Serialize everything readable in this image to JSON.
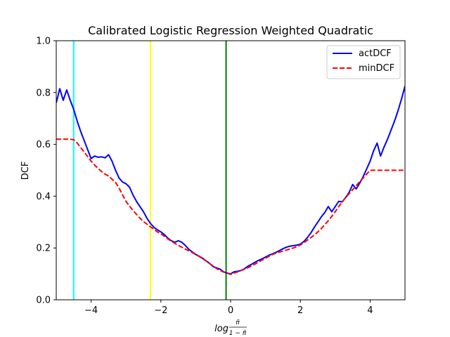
{
  "chart_data": {
    "type": "line",
    "title": "Calibrated Logistic Regression Weighted Quadratic",
    "xlabel_parts": {
      "prefix": "log",
      "num": "π̃",
      "den": "1 − π̃"
    },
    "ylabel": "DCF",
    "xlim": [
      -5,
      5
    ],
    "ylim": [
      0,
      1.0
    ],
    "xticks": [
      -4,
      -2,
      0,
      2,
      4
    ],
    "xtick_labels": [
      "−4",
      "−2",
      "0",
      "2",
      "4"
    ],
    "yticks": [
      0.0,
      0.2,
      0.4,
      0.6,
      0.8,
      1.0
    ],
    "ytick_labels": [
      "0.0",
      "0.2",
      "0.4",
      "0.6",
      "0.8",
      "1.0"
    ],
    "grid": false,
    "legend_position": "top-right",
    "series": [
      {
        "name": "actDCF",
        "color": "#0000ff",
        "style": "solid",
        "x": [
          -5,
          -4.9,
          -4.8,
          -4.7,
          -4.6,
          -4.5,
          -4.4,
          -4.3,
          -4.2,
          -4.1,
          -4.0,
          -3.9,
          -3.8,
          -3.7,
          -3.6,
          -3.5,
          -3.4,
          -3.3,
          -3.2,
          -3.1,
          -3.0,
          -2.9,
          -2.8,
          -2.7,
          -2.6,
          -2.5,
          -2.4,
          -2.3,
          -2.2,
          -2.1,
          -2.0,
          -1.9,
          -1.8,
          -1.7,
          -1.6,
          -1.5,
          -1.4,
          -1.3,
          -1.2,
          -1.1,
          -1.0,
          -0.9,
          -0.8,
          -0.7,
          -0.6,
          -0.5,
          -0.4,
          -0.3,
          -0.2,
          -0.1,
          0.0,
          0.1,
          0.2,
          0.3,
          0.4,
          0.5,
          0.6,
          0.7,
          0.8,
          0.9,
          1.0,
          1.1,
          1.2,
          1.3,
          1.4,
          1.5,
          1.6,
          1.7,
          1.8,
          1.9,
          2.0,
          2.1,
          2.2,
          2.3,
          2.4,
          2.5,
          2.6,
          2.7,
          2.8,
          2.9,
          3.0,
          3.1,
          3.2,
          3.3,
          3.4,
          3.5,
          3.6,
          3.7,
          3.8,
          3.9,
          4.0,
          4.1,
          4.2,
          4.3,
          4.4,
          4.5,
          4.6,
          4.7,
          4.8,
          4.9,
          5.0
        ],
        "y": [
          0.76,
          0.815,
          0.77,
          0.81,
          0.77,
          0.735,
          0.69,
          0.65,
          0.615,
          0.58,
          0.545,
          0.555,
          0.55,
          0.552,
          0.548,
          0.56,
          0.535,
          0.5,
          0.47,
          0.455,
          0.448,
          0.435,
          0.405,
          0.38,
          0.36,
          0.34,
          0.315,
          0.295,
          0.28,
          0.27,
          0.262,
          0.252,
          0.238,
          0.228,
          0.222,
          0.228,
          0.222,
          0.21,
          0.195,
          0.185,
          0.175,
          0.168,
          0.16,
          0.15,
          0.14,
          0.128,
          0.123,
          0.118,
          0.108,
          0.103,
          0.1,
          0.108,
          0.11,
          0.113,
          0.12,
          0.13,
          0.137,
          0.145,
          0.152,
          0.158,
          0.165,
          0.172,
          0.177,
          0.183,
          0.19,
          0.197,
          0.203,
          0.207,
          0.209,
          0.211,
          0.215,
          0.225,
          0.24,
          0.258,
          0.28,
          0.3,
          0.32,
          0.337,
          0.36,
          0.34,
          0.36,
          0.38,
          0.378,
          0.395,
          0.415,
          0.445,
          0.428,
          0.45,
          0.475,
          0.505,
          0.535,
          0.575,
          0.605,
          0.555,
          0.59,
          0.62,
          0.655,
          0.69,
          0.73,
          0.775,
          0.825
        ]
      },
      {
        "name": "minDCF",
        "color": "#ff0000",
        "style": "dashed",
        "x": [
          -5,
          -4.8,
          -4.6,
          -4.5,
          -4.4,
          -4.3,
          -4.2,
          -4.1,
          -4.0,
          -3.9,
          -3.8,
          -3.7,
          -3.6,
          -3.5,
          -3.4,
          -3.3,
          -3.2,
          -3.1,
          -3.0,
          -2.9,
          -2.8,
          -2.7,
          -2.6,
          -2.5,
          -2.4,
          -2.3,
          -2.2,
          -2.1,
          -2.0,
          -1.9,
          -1.8,
          -1.7,
          -1.6,
          -1.5,
          -1.4,
          -1.3,
          -1.2,
          -1.1,
          -1.0,
          -0.9,
          -0.8,
          -0.7,
          -0.6,
          -0.5,
          -0.4,
          -0.3,
          -0.2,
          -0.1,
          0.0,
          0.1,
          0.2,
          0.3,
          0.4,
          0.5,
          0.6,
          0.7,
          0.8,
          0.9,
          1.0,
          1.1,
          1.2,
          1.3,
          1.4,
          1.5,
          1.6,
          1.7,
          1.8,
          1.9,
          2.0,
          2.1,
          2.2,
          2.3,
          2.4,
          2.5,
          2.6,
          2.7,
          2.8,
          2.9,
          3.0,
          3.1,
          3.2,
          3.3,
          3.4,
          3.5,
          3.6,
          3.7,
          3.8,
          3.9,
          4.0,
          4.1,
          4.2,
          4.5,
          5.0
        ],
        "y": [
          0.62,
          0.62,
          0.62,
          0.618,
          0.605,
          0.588,
          0.57,
          0.553,
          0.535,
          0.52,
          0.507,
          0.495,
          0.485,
          0.478,
          0.465,
          0.453,
          0.432,
          0.405,
          0.38,
          0.362,
          0.345,
          0.33,
          0.315,
          0.302,
          0.292,
          0.282,
          0.272,
          0.262,
          0.255,
          0.245,
          0.235,
          0.226,
          0.218,
          0.21,
          0.203,
          0.196,
          0.189,
          0.182,
          0.175,
          0.167,
          0.158,
          0.15,
          0.14,
          0.13,
          0.12,
          0.113,
          0.107,
          0.103,
          0.098,
          0.103,
          0.108,
          0.113,
          0.118,
          0.124,
          0.131,
          0.138,
          0.146,
          0.153,
          0.16,
          0.168,
          0.175,
          0.18,
          0.184,
          0.188,
          0.192,
          0.196,
          0.2,
          0.205,
          0.212,
          0.22,
          0.23,
          0.24,
          0.25,
          0.262,
          0.275,
          0.29,
          0.305,
          0.322,
          0.34,
          0.36,
          0.378,
          0.395,
          0.41,
          0.425,
          0.44,
          0.456,
          0.47,
          0.485,
          0.5,
          0.5,
          0.5,
          0.5,
          0.5
        ]
      }
    ],
    "vertical_lines": [
      {
        "x": -4.5,
        "color": "#00ffff"
      },
      {
        "x": -2.3,
        "color": "#ffff00"
      },
      {
        "x": -0.13,
        "color": "#008000"
      }
    ]
  }
}
